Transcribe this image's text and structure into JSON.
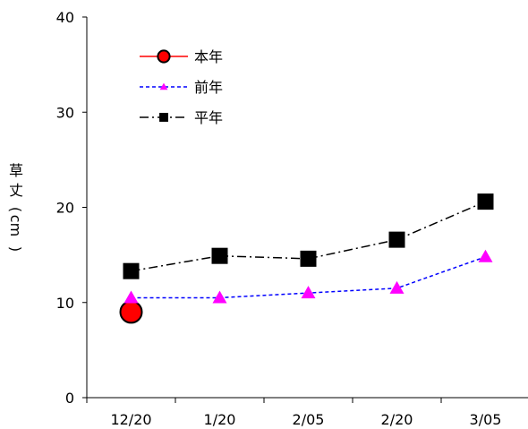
{
  "chart_data": {
    "type": "line",
    "title": "",
    "xlabel": "",
    "ylabel": "草丈（cm）",
    "categories": [
      "12/20",
      "1/20",
      "2/05",
      "2/20",
      "3/05"
    ],
    "ylim": [
      0,
      40
    ],
    "yticks": [
      "0",
      "10",
      "20",
      "30",
      "40"
    ],
    "grid": false,
    "legend_position": "top-left",
    "series": [
      {
        "name": "本年",
        "values": [
          9.0,
          null,
          null,
          null,
          null
        ],
        "color": "#ff0000",
        "line_color": "#ff0000",
        "marker": "circle",
        "line": "solid"
      },
      {
        "name": "前年",
        "values": [
          10.5,
          10.5,
          11.0,
          11.5,
          14.8
        ],
        "color": "#ff00ff",
        "line_color": "#0000ff",
        "marker": "triangle",
        "line": "dotted"
      },
      {
        "name": "平年",
        "values": [
          13.3,
          14.9,
          14.6,
          16.6,
          20.6
        ],
        "color": "#000000",
        "line_color": "#000000",
        "marker": "square",
        "line": "dashdot"
      }
    ]
  }
}
